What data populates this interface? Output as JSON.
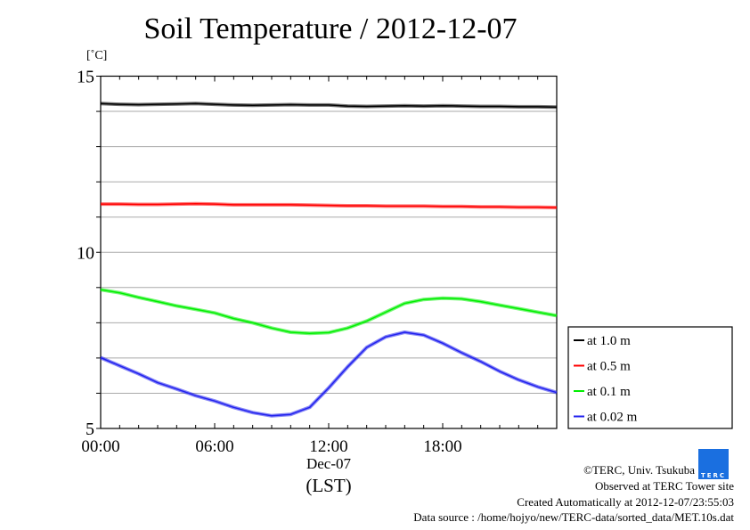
{
  "chart_data": {
    "type": "line",
    "title": "Soil Temperature / 2012-12-07",
    "ylabel": "[˚C]",
    "xlabel": "(LST)",
    "xdate": "Dec-07",
    "ylim": [
      5,
      15
    ],
    "xlim": [
      0,
      24
    ],
    "yticks": [
      {
        "v": 5,
        "label": "5"
      },
      {
        "v": 10,
        "label": "10"
      },
      {
        "v": 15,
        "label": "15"
      }
    ],
    "xticks": [
      {
        "v": 0,
        "label": "00:00"
      },
      {
        "v": 6,
        "label": "06:00"
      },
      {
        "v": 12,
        "label": "12:00"
      },
      {
        "v": 18,
        "label": "18:00"
      }
    ],
    "grid": true,
    "legend_position": "right-bottom",
    "x": [
      0,
      1,
      2,
      3,
      4,
      5,
      6,
      7,
      8,
      9,
      10,
      11,
      12,
      13,
      14,
      15,
      16,
      17,
      18,
      19,
      20,
      21,
      22,
      23,
      24
    ],
    "series": [
      {
        "name": "at 1.0 m",
        "color": "#000000",
        "values": [
          14.22,
          14.2,
          14.19,
          14.2,
          14.21,
          14.22,
          14.2,
          14.18,
          14.17,
          14.18,
          14.19,
          14.18,
          14.18,
          14.15,
          14.14,
          14.15,
          14.16,
          14.15,
          14.16,
          14.15,
          14.14,
          14.14,
          14.13,
          14.13,
          14.12
        ]
      },
      {
        "name": "at 0.5 m",
        "color": "#ff0000",
        "values": [
          11.37,
          11.37,
          11.36,
          11.36,
          11.37,
          11.38,
          11.37,
          11.35,
          11.35,
          11.35,
          11.35,
          11.34,
          11.33,
          11.32,
          11.32,
          11.31,
          11.31,
          11.31,
          11.3,
          11.3,
          11.29,
          11.29,
          11.28,
          11.28,
          11.27
        ]
      },
      {
        "name": "at 0.1 m",
        "color": "#00ee00",
        "values": [
          8.94,
          8.85,
          8.72,
          8.6,
          8.48,
          8.38,
          8.28,
          8.12,
          8.0,
          7.85,
          7.73,
          7.7,
          7.72,
          7.85,
          8.05,
          8.3,
          8.55,
          8.66,
          8.7,
          8.68,
          8.6,
          8.5,
          8.4,
          8.3,
          8.2
        ]
      },
      {
        "name": "at 0.02 m",
        "color": "#2222ee",
        "values": [
          7.01,
          6.78,
          6.55,
          6.3,
          6.12,
          5.93,
          5.78,
          5.6,
          5.45,
          5.36,
          5.4,
          5.6,
          6.15,
          6.75,
          7.3,
          7.6,
          7.73,
          7.65,
          7.42,
          7.15,
          6.9,
          6.62,
          6.38,
          6.18,
          6.02
        ]
      }
    ]
  },
  "footer": {
    "copyright": "©TERC, Univ. Tsukuba",
    "observed": "Observed at TERC Tower site",
    "created": "Created Automatically at 2012-12-07/23:55:03",
    "source": "Data source : /home/hojyo/new/TERC-data/sorted_data/MET.10s.dat",
    "logo_text": "TERC"
  }
}
